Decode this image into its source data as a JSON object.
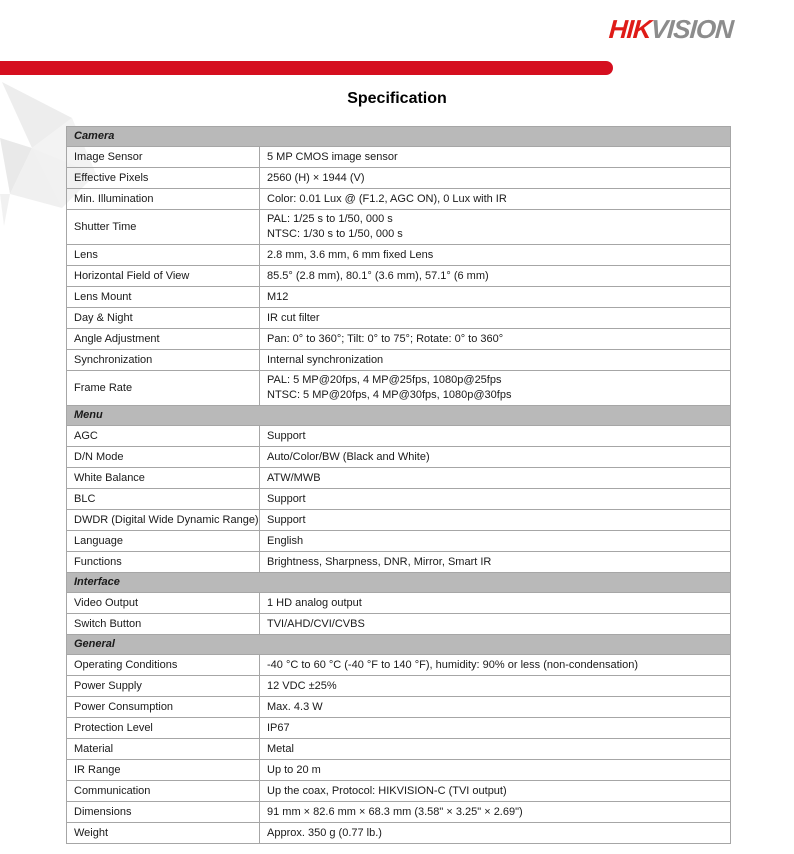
{
  "logo": {
    "part1": "HIK",
    "part2": "VISION"
  },
  "title": "Specification",
  "colors": {
    "brand_red": "#d50f1f",
    "logo_red": "#df1b17",
    "logo_gray": "#8c8c8c",
    "section_header_bg": "#b9b9b9",
    "table_border": "#a6a6a6"
  },
  "table": {
    "sections": [
      {
        "name": "Camera",
        "rows": [
          {
            "label": "Image Sensor",
            "value": [
              "5 MP CMOS image sensor"
            ]
          },
          {
            "label": "Effective Pixels",
            "value": [
              "2560 (H) × 1944 (V)"
            ]
          },
          {
            "label": "Min. Illumination",
            "value": [
              "Color: 0.01 Lux @ (F1.2, AGC ON), 0 Lux with IR"
            ]
          },
          {
            "label": "Shutter Time",
            "value": [
              "PAL: 1/25 s to 1/50, 000 s",
              "NTSC: 1/30 s to 1/50, 000 s"
            ]
          },
          {
            "label": "Lens",
            "value": [
              "2.8 mm, 3.6 mm, 6 mm fixed Lens"
            ]
          },
          {
            "label": "Horizontal Field of View",
            "value": [
              "85.5° (2.8 mm), 80.1° (3.6 mm), 57.1° (6 mm)"
            ]
          },
          {
            "label": "Lens Mount",
            "value": [
              "M12"
            ]
          },
          {
            "label": "Day & Night",
            "value": [
              "IR cut filter"
            ]
          },
          {
            "label": "Angle Adjustment",
            "value": [
              "Pan: 0° to 360°; Tilt: 0° to 75°; Rotate: 0° to 360°"
            ]
          },
          {
            "label": "Synchronization",
            "value": [
              "Internal synchronization"
            ]
          },
          {
            "label": "Frame Rate",
            "value": [
              "PAL: 5 MP@20fps, 4 MP@25fps, 1080p@25fps",
              "NTSC: 5 MP@20fps, 4 MP@30fps, 1080p@30fps"
            ]
          }
        ]
      },
      {
        "name": "Menu",
        "rows": [
          {
            "label": "AGC",
            "value": [
              "Support"
            ]
          },
          {
            "label": "D/N Mode",
            "value": [
              "Auto/Color/BW (Black and White)"
            ]
          },
          {
            "label": "White Balance",
            "value": [
              "ATW/MWB"
            ]
          },
          {
            "label": "BLC",
            "value": [
              "Support"
            ]
          },
          {
            "label": "DWDR (Digital Wide Dynamic Range)",
            "value": [
              "Support"
            ]
          },
          {
            "label": "Language",
            "value": [
              "English"
            ]
          },
          {
            "label": "Functions",
            "value": [
              "Brightness, Sharpness, DNR, Mirror, Smart IR"
            ]
          }
        ]
      },
      {
        "name": "Interface",
        "rows": [
          {
            "label": "Video Output",
            "value": [
              "1 HD analog output"
            ]
          },
          {
            "label": "Switch Button",
            "value": [
              "TVI/AHD/CVI/CVBS"
            ]
          }
        ]
      },
      {
        "name": "General",
        "rows": [
          {
            "label": "Operating Conditions",
            "value": [
              "-40 °C to 60 °C (-40 °F to 140 °F), humidity: 90% or less (non-condensation)"
            ]
          },
          {
            "label": "Power Supply",
            "value": [
              "12 VDC ±25%"
            ]
          },
          {
            "label": "Power Consumption",
            "value": [
              "Max. 4.3 W"
            ]
          },
          {
            "label": "Protection Level",
            "value": [
              "IP67"
            ]
          },
          {
            "label": "Material",
            "value": [
              "Metal"
            ]
          },
          {
            "label": "IR Range",
            "value": [
              "Up to 20 m"
            ]
          },
          {
            "label": "Communication",
            "value": [
              "Up the coax, Protocol: HIKVISION-C (TVI output)"
            ]
          },
          {
            "label": "Dimensions",
            "value": [
              "91 mm × 82.6 mm × 68.3 mm (3.58\" × 3.25\" × 2.69\")"
            ]
          },
          {
            "label": "Weight",
            "value": [
              "Approx. 350 g (0.77 lb.)"
            ]
          }
        ]
      }
    ]
  }
}
